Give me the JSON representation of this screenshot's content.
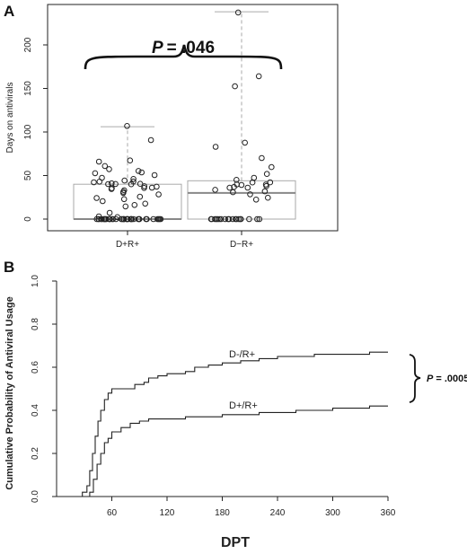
{
  "chart_data": [
    {
      "panel": "A",
      "type": "boxplot",
      "ylabel": "Days on antivirals",
      "ylim": [
        0,
        240
      ],
      "yticks": [
        0,
        50,
        100,
        150,
        200
      ],
      "categories": [
        "D+R+",
        "D−R+"
      ],
      "boxes": [
        {
          "name": "D+R+",
          "min": 0,
          "q1": 0,
          "median": 0,
          "q3": 40,
          "max": 106
        },
        {
          "name": "D−R+",
          "min": 0,
          "q1": 0,
          "median": 30,
          "q3": 44,
          "max": 238
        }
      ],
      "points": [
        [
          0,
          0,
          0,
          0,
          0,
          0,
          0,
          0,
          0,
          0,
          0,
          0,
          0,
          0,
          0,
          0,
          0,
          0,
          0,
          0,
          0,
          0,
          0,
          0,
          0,
          0,
          0,
          0,
          0,
          0,
          0,
          0,
          0,
          0,
          0,
          0,
          0,
          0,
          0,
          0,
          2,
          4,
          8,
          14,
          16,
          18,
          20,
          22,
          24,
          26,
          28,
          30,
          32,
          33,
          34,
          35,
          36,
          37,
          38,
          38,
          39,
          40,
          40,
          41,
          42,
          42,
          43,
          44,
          45,
          46,
          48,
          50,
          52,
          54,
          56,
          58,
          60,
          65,
          68,
          90,
          106
        ],
        [
          0,
          0,
          0,
          0,
          0,
          0,
          0,
          0,
          0,
          0,
          0,
          0,
          0,
          0,
          0,
          0,
          0,
          0,
          0,
          22,
          25,
          28,
          30,
          31,
          33,
          35,
          36,
          37,
          38,
          39,
          40,
          40,
          42,
          43,
          45,
          48,
          52,
          60,
          70,
          84,
          88,
          153,
          164,
          238
        ]
      ],
      "annotation": {
        "p_label": "P",
        "p_value": "= .046"
      }
    },
    {
      "panel": "B",
      "type": "line",
      "ylabel": "Cumulative Probability of Antiviral Usage",
      "xlabel": "DPT",
      "xlim": [
        0,
        360
      ],
      "ylim": [
        0,
        1
      ],
      "xticks": [
        60,
        120,
        180,
        240,
        300,
        360
      ],
      "yticks": [
        "0.0",
        "0.2",
        "0.4",
        "0.6",
        "0.8",
        "1.0"
      ],
      "series": [
        {
          "name": "D-/R+",
          "x": [
            20,
            28,
            33,
            36,
            39,
            42,
            45,
            48,
            52,
            56,
            60,
            75,
            85,
            95,
            100,
            110,
            120,
            140,
            150,
            165,
            180,
            200,
            220,
            240,
            260,
            280,
            300,
            320,
            340,
            350,
            360
          ],
          "y": [
            0,
            0.02,
            0.05,
            0.12,
            0.2,
            0.28,
            0.35,
            0.4,
            0.45,
            0.48,
            0.5,
            0.5,
            0.52,
            0.53,
            0.55,
            0.56,
            0.57,
            0.58,
            0.6,
            0.61,
            0.62,
            0.63,
            0.64,
            0.65,
            0.65,
            0.66,
            0.66,
            0.66,
            0.67,
            0.67,
            0.67
          ]
        },
        {
          "name": "D+/R+",
          "x": [
            30,
            36,
            40,
            44,
            48,
            52,
            56,
            60,
            70,
            80,
            90,
            100,
            120,
            140,
            160,
            180,
            200,
            220,
            240,
            260,
            280,
            300,
            320,
            340,
            360
          ],
          "y": [
            0,
            0.02,
            0.08,
            0.15,
            0.2,
            0.25,
            0.27,
            0.3,
            0.32,
            0.34,
            0.35,
            0.36,
            0.36,
            0.37,
            0.37,
            0.38,
            0.38,
            0.39,
            0.39,
            0.4,
            0.4,
            0.41,
            0.41,
            0.42,
            0.42
          ]
        }
      ],
      "annotation": {
        "p_label": "P",
        "p_value": "= .0005"
      }
    }
  ],
  "panel_letters": {
    "a": "A",
    "b": "B"
  }
}
